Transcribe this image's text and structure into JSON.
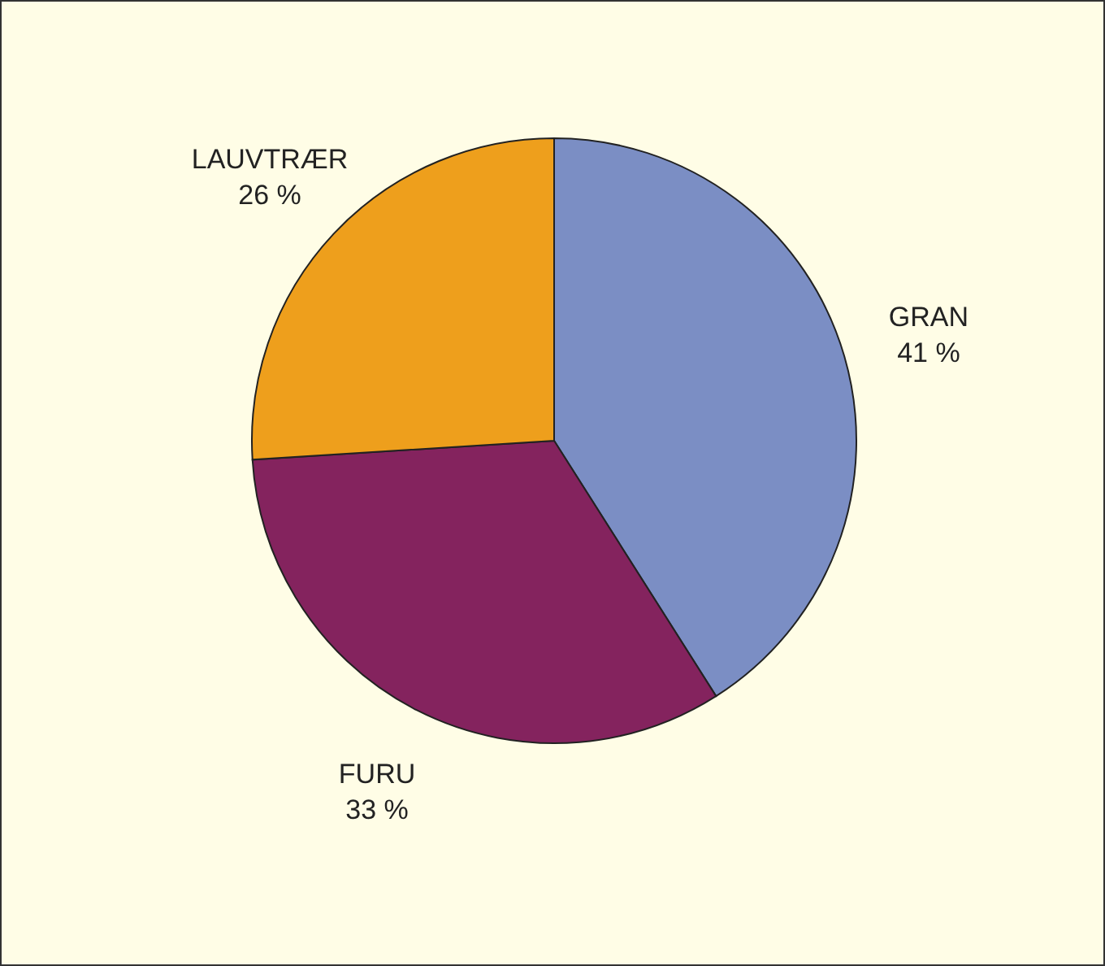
{
  "chart_data": {
    "type": "pie",
    "categories": [
      "GRAN",
      "FURU",
      "LAUVTRÆR"
    ],
    "values": [
      41,
      33,
      26
    ],
    "colors": [
      "#7b8ec4",
      "#84235e",
      "#ee9f1c"
    ],
    "value_labels": [
      "41 %",
      "33 %",
      "26 %"
    ],
    "legend": false
  }
}
